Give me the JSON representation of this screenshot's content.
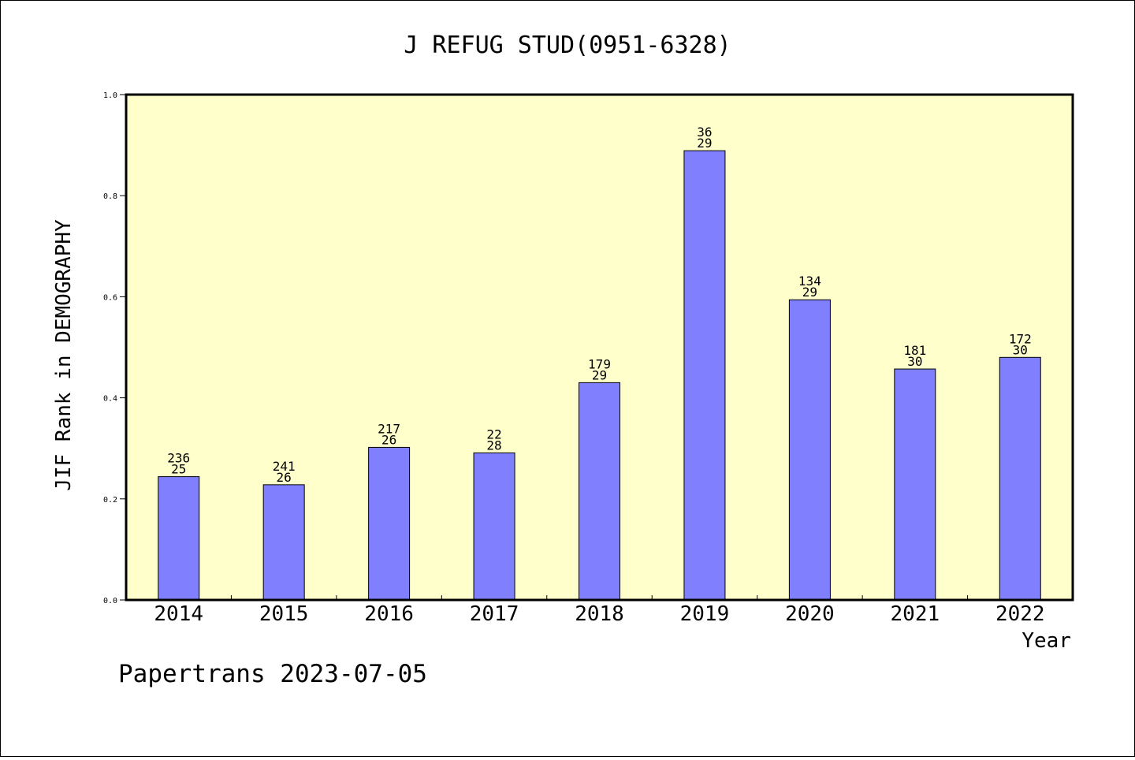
{
  "chart_data": {
    "type": "bar",
    "title": "J REFUG STUD(0951-6328)",
    "xlabel": "Year",
    "ylabel": "JIF Rank in DEMOGRAPHY",
    "ylim": [
      0,
      1.0
    ],
    "yticks": [
      "0.0",
      "0.2",
      "0.4",
      "0.6",
      "0.8",
      "1.0"
    ],
    "categories": [
      "2014",
      "2015",
      "2016",
      "2017",
      "2018",
      "2019",
      "2020",
      "2021",
      "2022"
    ],
    "values": [
      0.244,
      0.228,
      0.302,
      0.291,
      0.43,
      0.889,
      0.594,
      0.457,
      0.48
    ],
    "label_top": [
      "236",
      "241",
      "217",
      "22",
      "179",
      "36",
      "134",
      "181",
      "172"
    ],
    "label_bottom": [
      "25",
      "26",
      "26",
      "28",
      "29",
      "29",
      "29",
      "30",
      "30"
    ],
    "grid": false,
    "colors": {
      "plot_bg": "#ffffcc",
      "bar": "#8080ff",
      "bar_edge": "#000000"
    }
  },
  "footer": "Papertrans 2023-07-05"
}
